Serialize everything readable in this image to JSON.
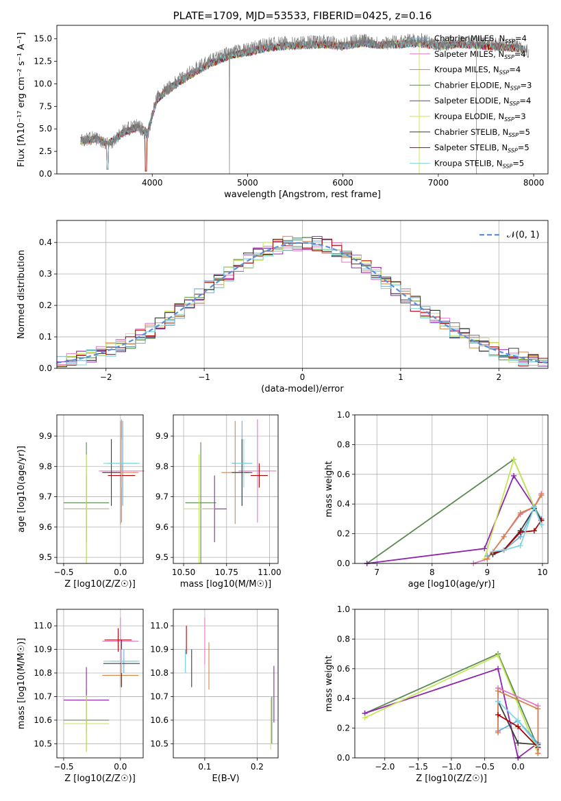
{
  "colors": {
    "Chabrier MILES": "#6baed6",
    "Salpeter MILES": "#e377c2",
    "Kroupa MILES": "#d6834a",
    "Chabrier ELODIE": "#5a8a52",
    "Salpeter ELODIE": "#8e24aa",
    "Kroupa ELODIE": "#c6e65a",
    "Chabrier STELIB": "#3a3a3a",
    "Salpeter STELIB": "#b00000",
    "Kroupa STELIB": "#7fd6e0",
    "normal": "#5b8ed9",
    "data": "#7f7f7f"
  },
  "chart_data": [
    {
      "id": "spectrum",
      "type": "line",
      "title": "PLATE=1709, MJD=53533, FIBERID=0425, z=0.16",
      "xlabel": "wavelength [Angstrom, rest frame]",
      "ylabel": "Flux [fλ10⁻¹⁷ erg cm⁻² s⁻¹ A⁻¹]",
      "xlim": [
        3000,
        8150
      ],
      "ylim": [
        0,
        16.5
      ],
      "xticks": [
        4000,
        5000,
        6000,
        7000,
        8000
      ],
      "yticks": [
        0.0,
        2.5,
        5.0,
        7.5,
        10.0,
        12.5,
        15.0
      ],
      "legend_placement": "top-right",
      "legend": [
        "Chabrier MILES, N_SSP=4",
        "Salpeter MILES, N_SSP=4",
        "Kroupa MILES, N_SSP=4",
        "Chabrier ELODIE, N_SSP=3",
        "Salpeter ELODIE, N_SSP=4",
        "Kroupa ELODIE, N_SSP=3",
        "Chabrier STELIB, N_SSP=5",
        "Salpeter STELIB, N_SSP=5",
        "Kroupa STELIB, N_SSP=5"
      ],
      "series": [
        {
          "name": "data",
          "x": [
            3250,
            3400,
            3550,
            3700,
            3850,
            3950,
            4050,
            4200,
            4400,
            4600,
            4800,
            5000,
            5200,
            5400,
            5600,
            5800,
            6000,
            6200,
            6400,
            6600,
            6800,
            7000,
            7200,
            7400,
            7600,
            7800,
            7900
          ],
          "y": [
            3.8,
            4.0,
            3.3,
            4.8,
            5.4,
            4.3,
            8.5,
            9.8,
            11.3,
            12.5,
            13.4,
            13.8,
            14.4,
            14.5,
            14.6,
            14.7,
            14.4,
            14.9,
            14.5,
            14.7,
            14.9,
            14.4,
            14.7,
            14.6,
            14.4,
            14.3,
            13.6
          ]
        },
        {
          "name": "model",
          "x": [
            3250,
            3400,
            3550,
            3700,
            3850,
            3950,
            4050,
            4200,
            4400,
            4600,
            4800,
            5000,
            5200,
            5400,
            5600,
            5800,
            6000,
            6200,
            6400,
            6600,
            6800,
            7000,
            7200,
            7400,
            7600,
            7800,
            7900
          ],
          "y": [
            3.7,
            3.9,
            3.4,
            4.6,
            5.2,
            4.6,
            8.3,
            9.6,
            11.0,
            12.2,
            13.1,
            13.5,
            14.0,
            14.2,
            14.3,
            14.4,
            14.2,
            14.5,
            14.3,
            14.4,
            14.5,
            14.2,
            14.4,
            14.3,
            14.1,
            14.0,
            13.8
          ]
        }
      ]
    },
    {
      "id": "residuals",
      "type": "area",
      "xlabel": "(data-model)/error",
      "ylabel": "Normed distribution",
      "xlim": [
        -2.5,
        2.5
      ],
      "ylim": [
        0,
        0.47
      ],
      "xticks": [
        -2,
        -1,
        0,
        1,
        2
      ],
      "yticks": [
        0.0,
        0.1,
        0.2,
        0.3,
        0.4
      ],
      "legend": [
        "𝒩(0, 1)"
      ],
      "legend_placement": "top-right",
      "bin_width": 0.1
    },
    {
      "id": "Z_age",
      "type": "scatter",
      "xlabel": "Z [log10(Z/Z☉)]",
      "ylabel": "age  [log10(age/yr)]",
      "xlim": [
        -0.56,
        0.2
      ],
      "ylim": [
        9.48,
        9.97
      ],
      "xticks": [
        -0.5,
        0.0
      ],
      "yticks": [
        9.5,
        9.6,
        9.7,
        9.8,
        9.9
      ],
      "points": [
        {
          "model": "Chabrier MILES",
          "x": 0.02,
          "y": 9.81,
          "xerr": 0.13,
          "yerr": 0.14
        },
        {
          "model": "Salpeter MILES",
          "x": 0.01,
          "y": 9.785,
          "xerr": 0.2,
          "yerr": 0.17
        },
        {
          "model": "Kroupa MILES",
          "x": 0.0,
          "y": 9.78,
          "xerr": 0.16,
          "yerr": 0.17
        },
        {
          "model": "Chabrier ELODIE",
          "x": -0.3,
          "y": 9.68,
          "xerr": 0.2,
          "yerr": 0.2
        },
        {
          "model": "Salpeter ELODIE",
          "x": -0.3,
          "y": 9.66,
          "xerr": 0.2,
          "yerr": 0.11
        },
        {
          "model": "Kroupa ELODIE",
          "x": -0.3,
          "y": 9.66,
          "xerr": 0.2,
          "yerr": 0.18
        },
        {
          "model": "Chabrier STELIB",
          "x": -0.08,
          "y": 9.78,
          "xerr": 0.08,
          "yerr": 0.11
        },
        {
          "model": "Salpeter STELIB",
          "x": 0.01,
          "y": 9.77,
          "xerr": 0.12,
          "yerr": 0.04
        },
        {
          "model": "Kroupa STELIB",
          "x": 0.01,
          "y": 9.81,
          "xerr": 0.16,
          "yerr": 0.08
        }
      ]
    },
    {
      "id": "mass_age",
      "type": "scatter",
      "xlabel": "mass [log10(M/M☉)]",
      "ylabel": "",
      "xlim": [
        10.44,
        11.05
      ],
      "ylim": [
        9.48,
        9.97
      ],
      "xticks": [
        10.5,
        10.75,
        11.0
      ],
      "yticks": [
        9.5,
        9.6,
        9.7,
        9.8,
        9.9
      ],
      "points": [
        {
          "model": "Chabrier MILES",
          "x": 10.84,
          "y": 9.81,
          "xerr": 0.06,
          "yerr": 0.14
        },
        {
          "model": "Salpeter MILES",
          "x": 10.93,
          "y": 9.785,
          "xerr": 0.11,
          "yerr": 0.17
        },
        {
          "model": "Kroupa MILES",
          "x": 10.8,
          "y": 9.78,
          "xerr": 0.08,
          "yerr": 0.17
        },
        {
          "model": "Chabrier ELODIE",
          "x": 10.6,
          "y": 9.68,
          "xerr": 0.09,
          "yerr": 0.2
        },
        {
          "model": "Salpeter ELODIE",
          "x": 10.68,
          "y": 9.66,
          "xerr": 0.07,
          "yerr": 0.11
        },
        {
          "model": "Kroupa ELODIE",
          "x": 10.59,
          "y": 9.66,
          "xerr": 0.09,
          "yerr": 0.18
        },
        {
          "model": "Chabrier STELIB",
          "x": 10.84,
          "y": 9.78,
          "xerr": 0.06,
          "yerr": 0.11
        },
        {
          "model": "Salpeter STELIB",
          "x": 10.94,
          "y": 9.77,
          "xerr": 0.05,
          "yerr": 0.04
        },
        {
          "model": "Kroupa STELIB",
          "x": 10.85,
          "y": 9.81,
          "xerr": 0.05,
          "yerr": 0.08
        }
      ]
    },
    {
      "id": "age_weight",
      "type": "line",
      "xlabel": "age  [log10(age/yr)]",
      "ylabel": "mass weight",
      "xlim": [
        6.6,
        10.1
      ],
      "ylim": [
        0,
        1.0
      ],
      "xticks": [
        7,
        8,
        9,
        10
      ],
      "yticks": [
        0.0,
        0.2,
        0.4,
        0.6,
        0.8,
        1.0
      ],
      "series": [
        {
          "name": "Chabrier ELODIE",
          "x": [
            6.82,
            9.48,
            9.85,
            9.98
          ],
          "y": [
            0.0,
            0.7,
            0.38,
            0.3
          ]
        },
        {
          "name": "Salpeter ELODIE",
          "x": [
            6.82,
            8.95,
            9.48,
            9.85,
            9.98
          ],
          "y": [
            0.0,
            0.1,
            0.59,
            0.38,
            0.46
          ]
        },
        {
          "name": "Kroupa ELODIE",
          "x": [
            8.95,
            9.48,
            9.85,
            9.98
          ],
          "y": [
            0.03,
            0.7,
            0.38,
            0.46
          ]
        },
        {
          "name": "Chabrier MILES",
          "x": [
            9.0,
            9.3,
            9.6,
            9.85,
            9.98
          ],
          "y": [
            0.05,
            0.09,
            0.18,
            0.37,
            0.3
          ]
        },
        {
          "name": "Salpeter MILES",
          "x": [
            8.75,
            9.0,
            9.3,
            9.6,
            9.85,
            9.98
          ],
          "y": [
            0.0,
            0.03,
            0.18,
            0.33,
            0.38,
            0.47
          ]
        },
        {
          "name": "Kroupa MILES",
          "x": [
            9.0,
            9.3,
            9.6,
            9.85,
            9.98
          ],
          "y": [
            0.03,
            0.18,
            0.34,
            0.38,
            0.46
          ]
        },
        {
          "name": "Chabrier STELIB",
          "x": [
            9.1,
            9.3,
            9.6,
            9.85,
            9.98
          ],
          "y": [
            0.06,
            0.09,
            0.22,
            0.37,
            0.29
          ]
        },
        {
          "name": "Salpeter STELIB",
          "x": [
            9.1,
            9.3,
            9.6,
            9.85,
            9.98
          ],
          "y": [
            0.07,
            0.09,
            0.21,
            0.22,
            0.29
          ]
        },
        {
          "name": "Kroupa STELIB",
          "x": [
            9.1,
            9.3,
            9.6,
            9.85,
            9.98
          ],
          "y": [
            0.08,
            0.09,
            0.12,
            0.38,
            0.26
          ]
        }
      ]
    },
    {
      "id": "Z_mass",
      "type": "scatter",
      "xlabel": "Z [log10(Z/Z☉)]",
      "ylabel": "mass [log10(M/M☉)]",
      "xlim": [
        -0.56,
        0.2
      ],
      "ylim": [
        10.44,
        11.07
      ],
      "xticks": [
        -0.5,
        0.0
      ],
      "yticks": [
        10.5,
        10.6,
        10.7,
        10.8,
        10.9,
        11.0
      ],
      "points": [
        {
          "model": "Chabrier MILES",
          "x": 0.03,
          "y": 10.85,
          "xerr": 0.12,
          "yerr": 0.05
        },
        {
          "model": "Salpeter MILES",
          "x": 0.0,
          "y": 10.935,
          "xerr": 0.16,
          "yerr": 0.1
        },
        {
          "model": "Kroupa MILES",
          "x": 0.0,
          "y": 10.79,
          "xerr": 0.16,
          "yerr": 0.05
        },
        {
          "model": "Chabrier ELODIE",
          "x": -0.3,
          "y": 10.6,
          "xerr": 0.2,
          "yerr": 0.13
        },
        {
          "model": "Salpeter ELODIE",
          "x": -0.3,
          "y": 10.685,
          "xerr": 0.2,
          "yerr": 0.14
        },
        {
          "model": "Kroupa ELODIE",
          "x": -0.3,
          "y": 10.585,
          "xerr": 0.2,
          "yerr": 0.12
        },
        {
          "model": "Chabrier STELIB",
          "x": 0.01,
          "y": 10.84,
          "xerr": 0.16,
          "yerr": 0.1
        },
        {
          "model": "Salpeter STELIB",
          "x": -0.02,
          "y": 10.94,
          "xerr": 0.12,
          "yerr": 0.05
        },
        {
          "model": "Kroupa STELIB",
          "x": 0.01,
          "y": 10.85,
          "xerr": 0.16,
          "yerr": 0.05
        }
      ]
    },
    {
      "id": "ebv_mass",
      "type": "scatter",
      "xlabel": "E(B-V)",
      "ylabel": "",
      "xlim": [
        0.04,
        0.24
      ],
      "ylim": [
        10.44,
        11.07
      ],
      "xticks": [
        0.1,
        0.2
      ],
      "yticks": [
        10.5,
        10.6,
        10.7,
        10.8,
        10.9,
        11.0
      ],
      "points": [
        {
          "model": "Chabrier MILES",
          "x": 0.063,
          "y": 10.85,
          "xerr": 0.0,
          "yerr": 0.05
        },
        {
          "model": "Salpeter MILES",
          "x": 0.1,
          "y": 10.935,
          "xerr": 0.0,
          "yerr": 0.1
        },
        {
          "model": "Kroupa MILES",
          "x": 0.108,
          "y": 10.83,
          "xerr": 0.0,
          "yerr": 0.1
        },
        {
          "model": "Chabrier ELODIE",
          "x": 0.228,
          "y": 10.6,
          "xerr": 0.0,
          "yerr": 0.1
        },
        {
          "model": "Salpeter ELODIE",
          "x": 0.232,
          "y": 10.71,
          "xerr": 0.0,
          "yerr": 0.12
        },
        {
          "model": "Kroupa ELODIE",
          "x": 0.226,
          "y": 10.585,
          "xerr": 0.0,
          "yerr": 0.11
        },
        {
          "model": "Chabrier STELIB",
          "x": 0.075,
          "y": 10.82,
          "xerr": 0.0,
          "yerr": 0.08
        },
        {
          "model": "Salpeter STELIB",
          "x": 0.065,
          "y": 10.94,
          "xerr": 0.0,
          "yerr": 0.06
        },
        {
          "model": "Kroupa STELIB",
          "x": 0.063,
          "y": 10.85,
          "xerr": 0.0,
          "yerr": 0.05
        }
      ]
    },
    {
      "id": "Z_weight",
      "type": "line",
      "xlabel": "Z [log10(Z/Z☉)]",
      "ylabel": "mass weight",
      "xlim": [
        -2.45,
        0.45
      ],
      "ylim": [
        0,
        1.0
      ],
      "xticks": [
        -2.0,
        -1.5,
        -1.0,
        -0.5,
        0.0
      ],
      "yticks": [
        0.0,
        0.2,
        0.4,
        0.6,
        0.8,
        1.0
      ],
      "series": [
        {
          "name": "Chabrier ELODIE",
          "x": [
            -2.3,
            -0.3,
            0.3
          ],
          "y": [
            0.3,
            0.7,
            0.07
          ]
        },
        {
          "name": "Salpeter ELODIE",
          "x": [
            -2.3,
            -0.3,
            0.0,
            0.3
          ],
          "y": [
            0.3,
            0.6,
            0.0,
            0.1
          ]
        },
        {
          "name": "Kroupa ELODIE",
          "x": [
            -2.3,
            -0.3,
            0.3
          ],
          "y": [
            0.27,
            0.69,
            0.03
          ]
        },
        {
          "name": "Chabrier MILES",
          "x": [
            -0.3,
            0.0,
            0.3
          ],
          "y": [
            0.18,
            0.25,
            0.1
          ]
        },
        {
          "name": "Salpeter MILES",
          "x": [
            -0.3,
            -0.3,
            0.3,
            0.3
          ],
          "y": [
            0.18,
            0.47,
            0.35,
            0.03
          ]
        },
        {
          "name": "Kroupa MILES",
          "x": [
            -0.3,
            -0.3,
            0.3,
            0.3
          ],
          "y": [
            0.17,
            0.45,
            0.33,
            0.03
          ]
        },
        {
          "name": "Chabrier STELIB",
          "x": [
            -0.3,
            0.0,
            0.3
          ],
          "y": [
            0.38,
            0.1,
            0.09
          ]
        },
        {
          "name": "Salpeter STELIB",
          "x": [
            -0.3,
            0.0,
            0.3
          ],
          "y": [
            0.29,
            0.21,
            0.07
          ]
        },
        {
          "name": "Kroupa STELIB",
          "x": [
            -0.3,
            0.0,
            0.3
          ],
          "y": [
            0.38,
            0.25,
            0.08
          ]
        }
      ]
    }
  ]
}
